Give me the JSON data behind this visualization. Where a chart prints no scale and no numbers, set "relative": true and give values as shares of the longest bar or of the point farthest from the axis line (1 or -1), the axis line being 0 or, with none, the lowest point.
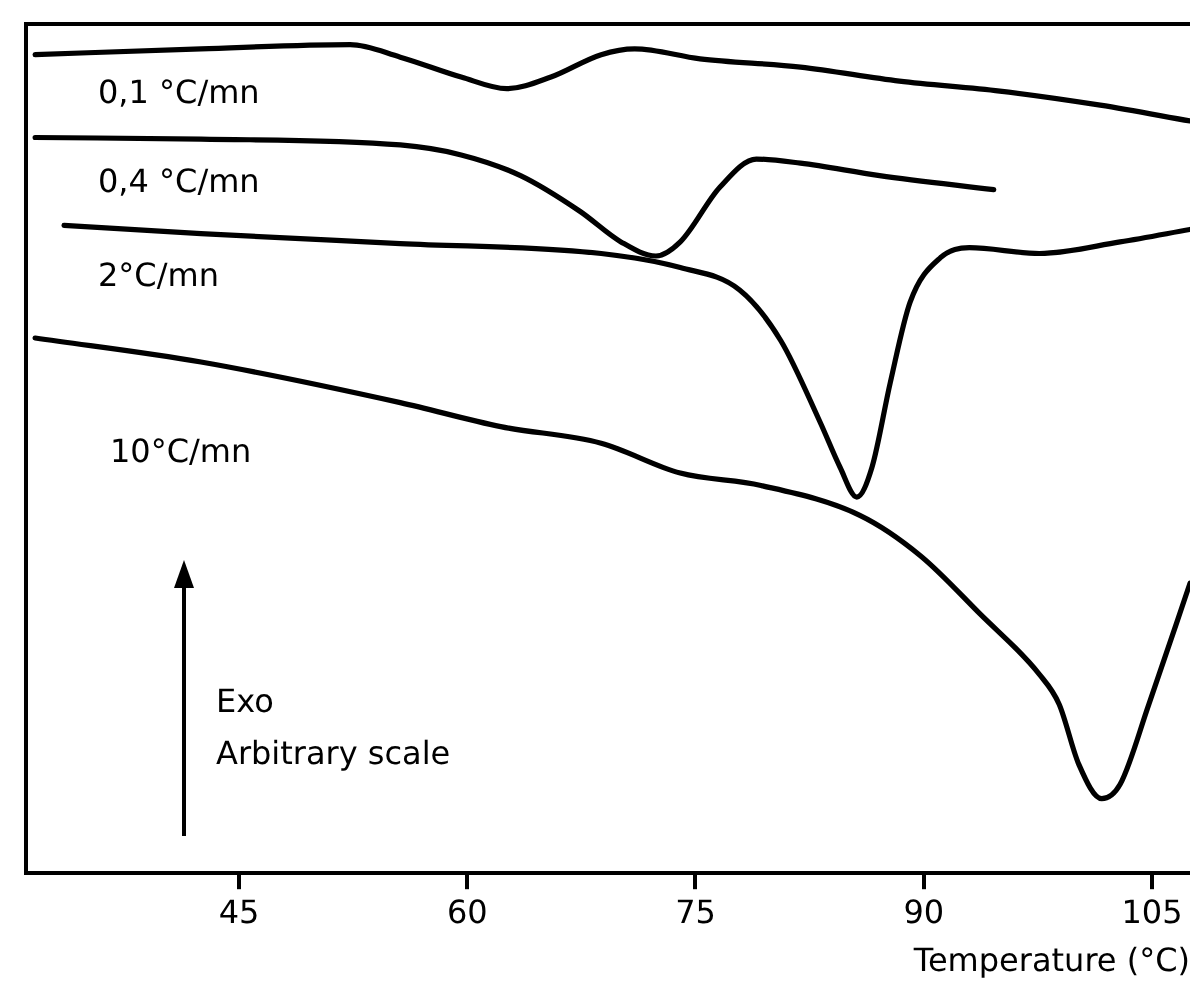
{
  "chart_data": {
    "type": "line",
    "relative": true,
    "xlabel": "Temperature (°C)",
    "xlim": [
      31,
      107.5
    ],
    "xticks": [
      45,
      60,
      75,
      90,
      105
    ],
    "grid": false,
    "legend": false,
    "marker": "none",
    "line_style": "solid",
    "tick_labels": "x",
    "annotations": [
      "Exo",
      "Arbitrary scale"
    ],
    "series": [
      {
        "name": "0,1 °C/mn",
        "color": "#000000",
        "x": [
          31.6,
          42.5,
          52.3,
          55.6,
          59.6,
          62.6,
          65.5,
          68.8,
          71.0,
          75.3,
          81.9,
          88.4,
          95.0,
          101.6,
          107.5
        ],
        "values": [
          0.988,
          0.995,
          1.0,
          0.985,
          0.961,
          0.947,
          0.961,
          0.988,
          0.995,
          0.983,
          0.973,
          0.956,
          0.944,
          0.927,
          0.908
        ]
      },
      {
        "name": "0,4 °C/mn",
        "color": "#000000",
        "x": [
          31.6,
          42.5,
          55.6,
          59.6,
          63.5,
          67.4,
          70.1,
          72.4,
          74.0,
          76.6,
          79.0,
          81.9,
          87.1,
          94.6
        ],
        "values": [
          0.888,
          0.886,
          0.879,
          0.867,
          0.842,
          0.799,
          0.762,
          0.745,
          0.762,
          0.828,
          0.862,
          0.857,
          0.842,
          0.825
        ]
      },
      {
        "name": "2°C/mn",
        "color": "#000000",
        "x": [
          33.5,
          42.5,
          55.6,
          68.8,
          74.0,
          77.9,
          80.6,
          83.2,
          84.5,
          85.6,
          86.6,
          87.8,
          89.1,
          91.1,
          93.0,
          97.6,
          102.9,
          107.5
        ],
        "values": [
          0.782,
          0.772,
          0.76,
          0.748,
          0.731,
          0.704,
          0.643,
          0.544,
          0.49,
          0.454,
          0.49,
          0.592,
          0.689,
          0.743,
          0.755,
          0.748,
          0.762,
          0.777
        ]
      },
      {
        "name": "10°C/mn",
        "color": "#000000",
        "x": [
          31.6,
          42.5,
          55.6,
          62.2,
          68.8,
          74.0,
          79.3,
          85.8,
          89.8,
          93.7,
          97.6,
          98.9,
          100.2,
          101.7,
          102.9,
          104.8,
          107.5
        ],
        "values": [
          0.646,
          0.617,
          0.568,
          0.539,
          0.519,
          0.483,
          0.468,
          0.432,
          0.383,
          0.313,
          0.24,
          0.204,
          0.131,
          0.09,
          0.107,
          0.204,
          0.35
        ]
      }
    ]
  }
}
